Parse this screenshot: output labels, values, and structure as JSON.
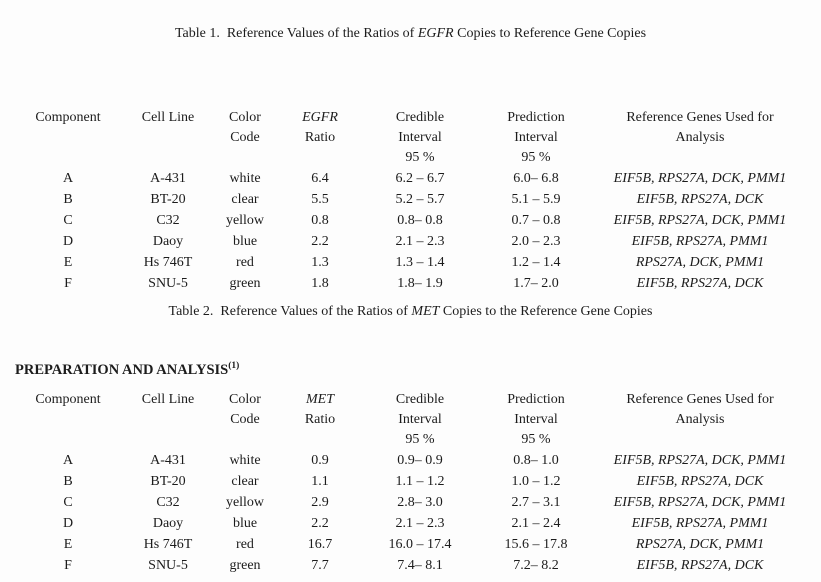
{
  "section_heading": {
    "text": "PREPARATION AND ANALYSIS",
    "sup": "(1)"
  },
  "tables": [
    {
      "title": {
        "pre": "Table 1.  Reference Values of the Ratios of ",
        "gene": "EGFR",
        "post": " Copies to Reference Gene Copies"
      },
      "headers": {
        "component": "Component",
        "cell_line": "Cell Line",
        "color1": "Color",
        "color2": "Code",
        "ratio_gene": "EGFR",
        "ratio2": "Ratio",
        "credible1": "Credible",
        "credible2": "Interval",
        "credible3": "95 %",
        "prediction1": "Prediction",
        "prediction2": "Interval",
        "prediction3": "95 %",
        "genes1": "Reference Genes Used for",
        "genes2": "Analysis"
      },
      "rows": [
        {
          "component": "A",
          "cell_line": "A-431",
          "color_code": "white",
          "ratio": "6.4",
          "credible_interval": "6.2 – 6.7",
          "prediction_interval": "6.0– 6.8",
          "reference_genes": "EIF5B, RPS27A, DCK, PMM1"
        },
        {
          "component": "B",
          "cell_line": "BT-20",
          "color_code": "clear",
          "ratio": "5.5",
          "credible_interval": "5.2 – 5.7",
          "prediction_interval": "5.1 – 5.9",
          "reference_genes": "EIF5B, RPS27A, DCK"
        },
        {
          "component": "C",
          "cell_line": "C32",
          "color_code": "yellow",
          "ratio": "0.8",
          "credible_interval": "0.8– 0.8",
          "prediction_interval": "0.7 – 0.8",
          "reference_genes": "EIF5B, RPS27A, DCK, PMM1"
        },
        {
          "component": "D",
          "cell_line": "Daoy",
          "color_code": "blue",
          "ratio": "2.2",
          "credible_interval": "2.1 – 2.3",
          "prediction_interval": "2.0 – 2.3",
          "reference_genes": "EIF5B, RPS27A, PMM1"
        },
        {
          "component": "E",
          "cell_line": "Hs 746T",
          "color_code": "red",
          "ratio": "1.3",
          "credible_interval": "1.3 – 1.4",
          "prediction_interval": "1.2 – 1.4",
          "reference_genes": "RPS27A, DCK, PMM1"
        },
        {
          "component": "F",
          "cell_line": "SNU-5",
          "color_code": "green",
          "ratio": "1.8",
          "credible_interval": "1.8– 1.9",
          "prediction_interval": "1.7– 2.0",
          "reference_genes": "EIF5B, RPS27A, DCK"
        }
      ]
    },
    {
      "title": {
        "pre": "Table 2.  Reference Values of the Ratios of ",
        "gene": "MET",
        "post": " Copies to the Reference Gene Copies"
      },
      "headers": {
        "component": "Component",
        "cell_line": "Cell Line",
        "color1": "Color",
        "color2": "Code",
        "ratio_gene": "MET",
        "ratio2": "Ratio",
        "credible1": "Credible",
        "credible2": "Interval",
        "credible3": "95 %",
        "prediction1": "Prediction",
        "prediction2": "Interval",
        "prediction3": "95 %",
        "genes1": "Reference Genes Used for",
        "genes2": "Analysis"
      },
      "rows": [
        {
          "component": "A",
          "cell_line": "A-431",
          "color_code": "white",
          "ratio": "0.9",
          "credible_interval": "0.9– 0.9",
          "prediction_interval": "0.8– 1.0",
          "reference_genes": "EIF5B, RPS27A, DCK, PMM1"
        },
        {
          "component": "B",
          "cell_line": "BT-20",
          "color_code": "clear",
          "ratio": "1.1",
          "credible_interval": "1.1 – 1.2",
          "prediction_interval": "1.0 – 1.2",
          "reference_genes": "EIF5B, RPS27A, DCK"
        },
        {
          "component": "C",
          "cell_line": "C32",
          "color_code": "yellow",
          "ratio": "2.9",
          "credible_interval": "2.8– 3.0",
          "prediction_interval": "2.7 – 3.1",
          "reference_genes": "EIF5B, RPS27A, DCK, PMM1"
        },
        {
          "component": "D",
          "cell_line": "Daoy",
          "color_code": "blue",
          "ratio": "2.2",
          "credible_interval": "2.1 – 2.3",
          "prediction_interval": "2.1 – 2.4",
          "reference_genes": "EIF5B, RPS27A, PMM1"
        },
        {
          "component": "E",
          "cell_line": "Hs 746T",
          "color_code": "red",
          "ratio": "16.7",
          "credible_interval": "16.0 – 17.4",
          "prediction_interval": "15.6 – 17.8",
          "reference_genes": "RPS27A, DCK, PMM1"
        },
        {
          "component": "F",
          "cell_line": "SNU-5",
          "color_code": "green",
          "ratio": "7.7",
          "credible_interval": "7.4– 8.1",
          "prediction_interval": "7.2– 8.2",
          "reference_genes": "EIF5B, RPS27A, DCK"
        }
      ]
    }
  ]
}
